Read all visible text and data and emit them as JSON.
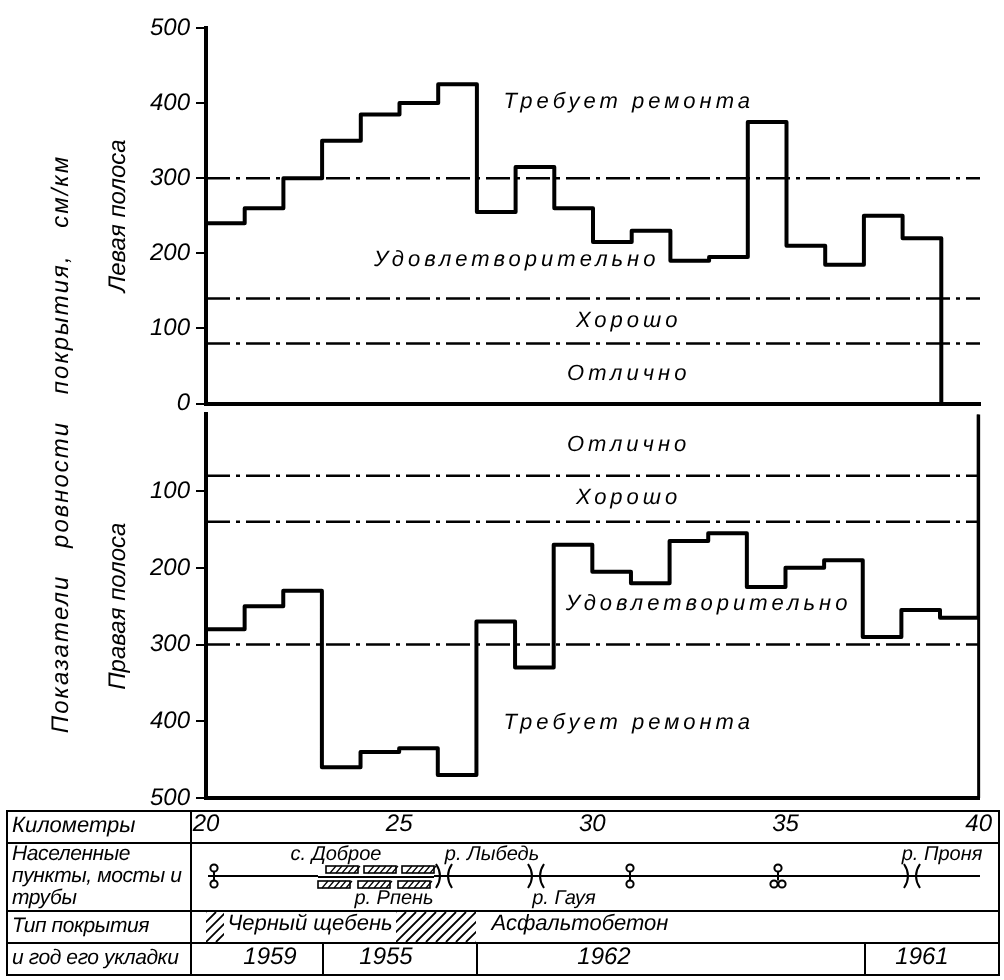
{
  "chart_data": [
    {
      "type": "step",
      "ylabel": "Левая полоса",
      "x": [
        20,
        21,
        22,
        23,
        24,
        25,
        26,
        27,
        28,
        29,
        30,
        31,
        32,
        33,
        34,
        35,
        36,
        37,
        38,
        39
      ],
      "values": [
        240,
        260,
        300,
        350,
        385,
        400,
        425,
        255,
        315,
        260,
        215,
        230,
        190,
        195,
        375,
        210,
        185,
        250,
        220,
        0
      ],
      "color": "#000000",
      "xlim": [
        20,
        40
      ],
      "ylim": [
        0,
        500
      ],
      "yticks": [
        0,
        100,
        200,
        300,
        400,
        500
      ],
      "tick_labels": "y",
      "ref_lines": [
        {
          "axis": "y",
          "value": 80
        },
        {
          "axis": "y",
          "value": 140
        },
        {
          "axis": "y",
          "value": 300
        }
      ],
      "annotations": [
        "Показатели ровности покрытия, см/км",
        "Отлично",
        "Хорошо",
        "Удовлетворительно",
        "Требует ремонта"
      ]
    },
    {
      "type": "step",
      "ylabel": "Правая полоса",
      "xlabel": "Километры",
      "x": [
        20,
        21,
        22,
        23,
        24,
        25,
        26,
        27,
        28,
        29,
        30,
        31,
        32,
        33,
        34,
        35,
        36,
        37,
        38,
        39,
        40
      ],
      "values": [
        280,
        250,
        230,
        460,
        440,
        435,
        470,
        270,
        330,
        170,
        205,
        220,
        165,
        155,
        225,
        200,
        190,
        290,
        255,
        265,
        0
      ],
      "color": "#000000",
      "xlim": [
        20,
        40
      ],
      "xticks": [
        20,
        25,
        30,
        35,
        40
      ],
      "ylim": [
        500,
        0
      ],
      "yticks": [
        100,
        200,
        300,
        400,
        500
      ],
      "ref_lines": [
        {
          "axis": "y",
          "value": 80
        },
        {
          "axis": "y",
          "value": 140
        },
        {
          "axis": "y",
          "value": 300
        }
      ],
      "annotations": [
        "Отлично",
        "Хорошо",
        "Удовлетворительно",
        "Требует ремонта"
      ]
    },
    {
      "type": "other",
      "y_categories": [
        "Населенные пункты, мосты и трубы",
        "Тип покрытия",
        "и год его укладки"
      ],
      "annotations": [
        "с. Доброе",
        "р. Рпень",
        "р. Лыбедь",
        "р. Гауя",
        "р. Проня",
        "Черный щебень",
        "Асфальтобетон",
        "1959",
        "1955",
        "1962",
        "1961"
      ]
    }
  ]
}
